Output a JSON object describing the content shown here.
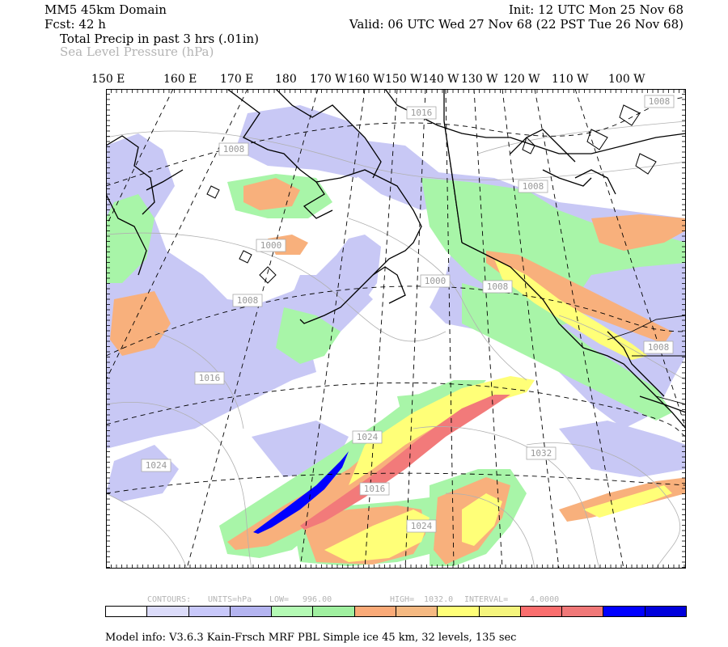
{
  "header": {
    "domain": "MM5 45km Domain",
    "init": "Init: 12 UTC Mon 25 Nov 68",
    "fcst": "Fcst:   42 h",
    "valid": "Valid: 06 UTC Wed 27 Nov 68 (22 PST Tue 26 Nov 68)",
    "field1": "Total Precip in past 3 hrs (.01in)",
    "field2": "Sea Level Pressure (hPa)"
  },
  "longitudes": [
    "150 E",
    "160 E",
    "170 E",
    "180",
    "170 W",
    "160 W",
    "150 W",
    "140 W",
    "130 W",
    "120 W",
    "110 W",
    "100 W"
  ],
  "isobar_labels": [
    "1016",
    "1008",
    "1008",
    "1008",
    "1000",
    "1008",
    "1008",
    "1000",
    "1016",
    "1024",
    "1016",
    "1032",
    "1024",
    "1008",
    "1024"
  ],
  "contour_info": {
    "contours": "CONTOURS:",
    "units": "UNITS=hPa",
    "low": "LOW=",
    "low_val": "996.00",
    "high": "HIGH=",
    "high_val": "1032.0",
    "interval": "INTERVAL=",
    "interval_val": "4.0000"
  },
  "colorbar": [
    "#ffffff",
    "#dcdcfa",
    "#c8c8fa",
    "#b4b4f0",
    "#b4fab4",
    "#a0f0a0",
    "#faaa78",
    "#f5b982",
    "#ffff78",
    "#f5f57d",
    "#fa6e6e",
    "#f07878",
    "#0000ff",
    "#0000dc"
  ],
  "model_info": "Model info: V3.6.3 Kain-Frsch MRF PBL    Simple ice   45 km,  32 levels,  135 sec"
}
